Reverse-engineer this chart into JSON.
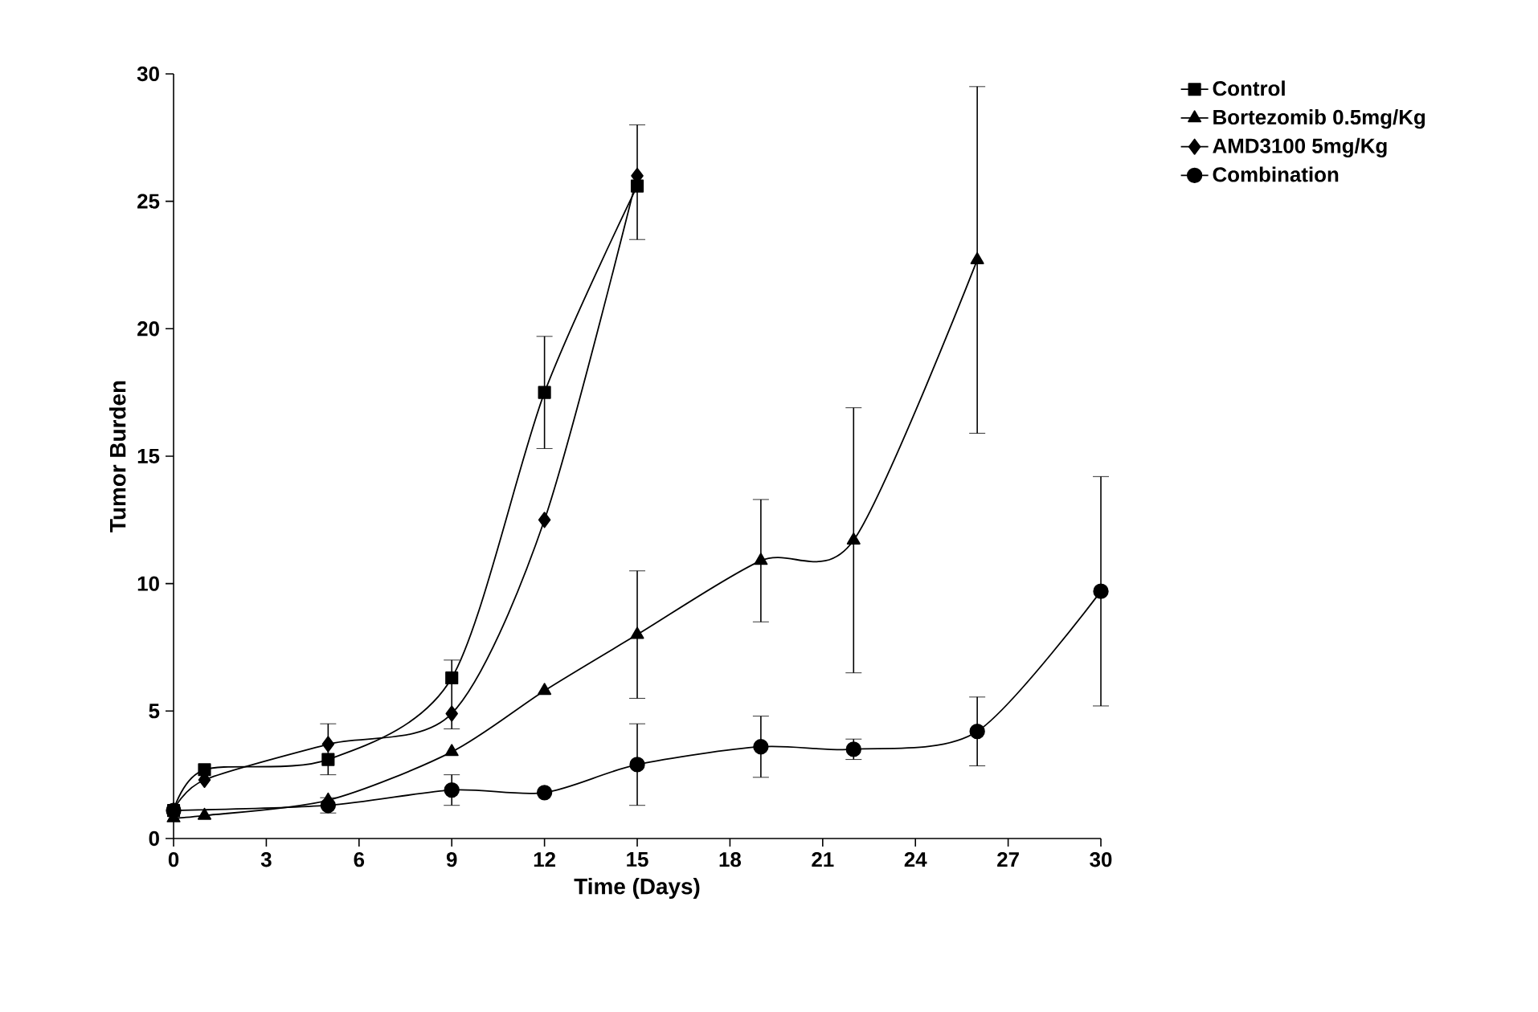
{
  "chart_data": {
    "type": "line",
    "xlabel": "Time (Days)",
    "ylabel": "Tumor Burden",
    "xlim": [
      0,
      30
    ],
    "ylim": [
      0,
      30
    ],
    "xticks": [
      0,
      3,
      6,
      9,
      12,
      15,
      18,
      21,
      24,
      27,
      30
    ],
    "yticks": [
      0,
      5,
      10,
      15,
      20,
      25,
      30
    ],
    "legend": "top right",
    "grid": false,
    "line_style": "solid",
    "series": [
      {
        "name": "Control",
        "color": "#000000",
        "marker": "square",
        "x": [
          0,
          1,
          5,
          9,
          12,
          15
        ],
        "values": [
          1.1,
          2.7,
          3.1,
          6.3,
          17.5,
          25.6
        ],
        "errors": [
          null,
          null,
          null,
          [
            4.3,
            7.0
          ],
          2.2,
          [
            23.5,
            28.0
          ]
        ]
      },
      {
        "name": "Bortezomib 0.5mg/Kg",
        "color": "#000000",
        "marker": "triangle",
        "x": [
          0,
          1,
          5,
          9,
          12,
          15,
          19,
          22,
          26
        ],
        "values": [
          0.8,
          0.9,
          1.5,
          3.4,
          5.8,
          8.0,
          10.9,
          11.7,
          22.7
        ],
        "errors": [
          null,
          null,
          null,
          null,
          null,
          2.5,
          2.4,
          5.2,
          6.8
        ]
      },
      {
        "name": "AMD3100 5mg/Kg",
        "color": "#000000",
        "marker": "diamond",
        "x": [
          0,
          1,
          5,
          9,
          12,
          15
        ],
        "values": [
          1.1,
          2.3,
          3.7,
          4.9,
          12.5,
          26.0
        ],
        "errors": [
          null,
          null,
          [
            2.5,
            4.5
          ],
          null,
          null,
          null
        ]
      },
      {
        "name": "Combination",
        "color": "#000000",
        "marker": "circle",
        "x": [
          0,
          5,
          9,
          12,
          15,
          19,
          22,
          26,
          30
        ],
        "values": [
          1.1,
          1.3,
          1.9,
          1.8,
          2.9,
          3.6,
          3.5,
          4.2,
          9.7
        ],
        "errors": [
          null,
          0.3,
          0.6,
          null,
          1.6,
          1.2,
          0.4,
          1.35,
          4.5
        ]
      }
    ]
  }
}
